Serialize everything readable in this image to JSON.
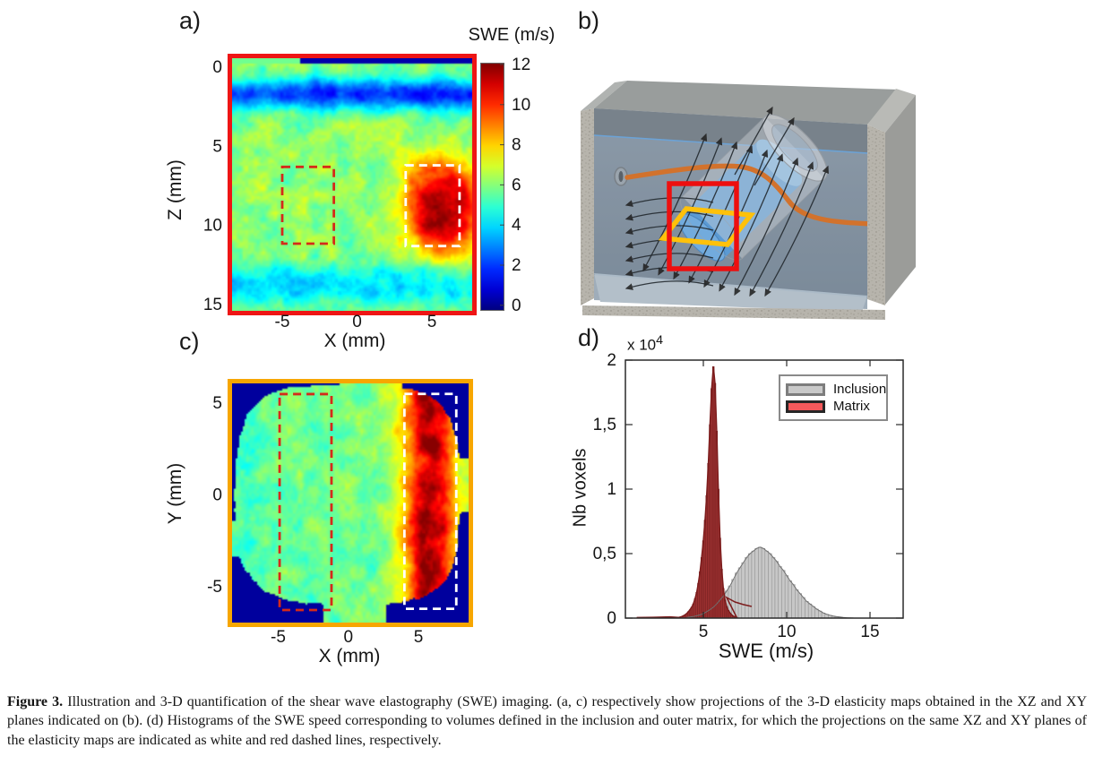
{
  "panels": {
    "a": {
      "label": "a)",
      "x_label": "X (mm)",
      "y_label": "Z (mm)",
      "colorbar_title": "SWE (m/s)",
      "frame_color": "#ee1515"
    },
    "b": {
      "label": "b)"
    },
    "c": {
      "label": "c)",
      "x_label": "X (mm)",
      "y_label": "Y (mm)",
      "frame_color": "#f7a600"
    },
    "d": {
      "label": "d)",
      "x_label": "SWE (m/s)",
      "y_label": "Nb voxels",
      "exponent_base": "x 10",
      "exponent_sup": "4",
      "legend": [
        {
          "label": "Inclusion",
          "swatch": "#c9c9c9",
          "swatch_border": "#7d7d7d"
        },
        {
          "label": "Matrix",
          "swatch": "#f4595b",
          "swatch_border": "#262626"
        }
      ]
    }
  },
  "colors": {
    "xz_plane_frame": "#ee1515",
    "xy_plane_frame": "#f7a600",
    "roi_matrix": "#d42a1a",
    "roi_inclusion": "#ffffff",
    "hist_matrix_fill": "#9e3131",
    "hist_inclusion_fill": "#c7c7c7",
    "fiber_orange": "#d2722c",
    "inclusion_cylinder_blue": "#5b9ad3"
  },
  "caption": {
    "label": "Figure 3.",
    "text": " Illustration and 3-D quantification of the shear wave elastography (SWE) imaging. (a, c) respectively show projections of the 3-D elasticity maps obtained in the XZ and XY planes indicated on (b). (d) Histograms of the SWE speed corresponding to volumes defined in the inclusion and outer matrix, for which the projections on the same XZ and XY planes of the elasticity maps are indicated as white and red dashed lines, respectively."
  },
  "chart_data": [
    {
      "id": "a",
      "type": "heatmap",
      "plane": "XZ",
      "xlabel": "X (mm)",
      "ylabel": "Z (mm)",
      "xlim": [
        -8.35,
        7.7
      ],
      "ylim": [
        -0.57,
        15.4
      ],
      "x_ticks": [
        -5,
        0,
        5
      ],
      "y_ticks": [
        0,
        5,
        10,
        15
      ],
      "grid": false,
      "colorbar": {
        "title": "SWE (m/s)",
        "range": [
          0,
          12
        ],
        "ticks": [
          12,
          10,
          8,
          6,
          4,
          2,
          0
        ]
      },
      "colormap": "jet",
      "rois": [
        {
          "name": "matrix",
          "line": "dashed",
          "color": "#d42a1a",
          "x": [
            -5.0,
            -1.55
          ],
          "y": [
            6.3,
            11.15
          ]
        },
        {
          "name": "inclusion",
          "line": "dashed",
          "color": "#ffffff",
          "x": [
            3.25,
            6.85
          ],
          "y": [
            6.2,
            11.3
          ]
        }
      ],
      "field": {
        "background_speed": 6.1,
        "low_speed_bands": [
          {
            "z": 1.7,
            "depth": 4.1,
            "sigma": 1.0
          },
          {
            "z": 13.8,
            "depth": 2.0,
            "sigma": 1.2
          }
        ],
        "inclusion": {
          "x": 5.7,
          "z": 8.8,
          "sx": 2.7,
          "sz": 3.0,
          "amp": 5.6
        },
        "noise_amp": 2.6
      }
    },
    {
      "id": "c",
      "type": "heatmap",
      "plane": "XY",
      "xlabel": "X (mm)",
      "ylabel": "Y (mm)",
      "xlim": [
        -8.29,
        8.58
      ],
      "ylim": [
        -6.95,
        6.07
      ],
      "x_ticks": [
        -5,
        0,
        5
      ],
      "y_ticks": [
        5,
        0,
        -5
      ],
      "grid": false,
      "colormap": "jet",
      "rois": [
        {
          "name": "matrix",
          "line": "dashed",
          "color": "#d42a1a",
          "x": [
            -4.9,
            -1.2
          ],
          "y": [
            -6.27,
            5.49
          ]
        },
        {
          "name": "inclusion",
          "line": "dashed",
          "color": "#ffffff",
          "x": [
            4.0,
            7.7
          ],
          "y": [
            -6.2,
            5.5
          ]
        }
      ],
      "field": {
        "background_speed": 5.8,
        "inclusion_band": {
          "x": 5.8,
          "sx": 2.0,
          "amp": 5.5
        },
        "noise_amp": 2.4,
        "footprint": {
          "rx": 8.0,
          "ry": 6.0,
          "power": 3.5
        }
      }
    },
    {
      "id": "d",
      "type": "bar",
      "title": "",
      "xlabel": "SWE (m/s)",
      "ylabel": "Nb voxels",
      "exponent": "x 10^4",
      "xlim": [
        0.3,
        17.0
      ],
      "ylim": [
        0,
        2
      ],
      "x_ticks": [
        5,
        10,
        15
      ],
      "y_ticks": [
        2,
        1.5,
        1,
        0.5,
        0
      ],
      "y_tick_labels": [
        "2",
        "1,5",
        "1",
        "0,5",
        "0"
      ],
      "grid": false,
      "legend_position": "top-right",
      "series": [
        {
          "name": "Inclusion",
          "fill": "#c7c7c7",
          "edge": "#8f8f8f",
          "x0": 4.0,
          "dx": 0.2,
          "y": [
            0.005,
            0.008,
            0.012,
            0.018,
            0.025,
            0.035,
            0.05,
            0.065,
            0.085,
            0.11,
            0.14,
            0.17,
            0.21,
            0.25,
            0.3,
            0.35,
            0.39,
            0.43,
            0.47,
            0.5,
            0.52,
            0.54,
            0.55,
            0.54,
            0.52,
            0.5,
            0.47,
            0.44,
            0.4,
            0.37,
            0.33,
            0.29,
            0.26,
            0.22,
            0.19,
            0.16,
            0.13,
            0.11,
            0.09,
            0.07,
            0.055,
            0.04,
            0.03,
            0.022,
            0.016,
            0.011,
            0.008,
            0.005,
            0.003,
            0.002,
            0.001
          ]
        },
        {
          "name": "Matrix",
          "fill": "#9e3131",
          "edge": "#6f1d1d",
          "x0": 3.5,
          "dx": 0.1,
          "y": [
            0.005,
            0.008,
            0.012,
            0.018,
            0.025,
            0.035,
            0.05,
            0.065,
            0.085,
            0.11,
            0.15,
            0.2,
            0.27,
            0.36,
            0.47,
            0.6,
            0.76,
            0.95,
            1.2,
            1.5,
            1.78,
            1.95,
            1.82,
            1.45,
            1.0,
            0.62,
            0.38,
            0.23,
            0.14,
            0.09,
            0.06,
            0.04,
            0.025,
            0.015,
            0.01,
            0.006
          ],
          "fit_tail": [
            [
              6.4,
              0.16
            ],
            [
              6.9,
              0.125
            ],
            [
              7.4,
              0.105
            ],
            [
              7.9,
              0.09
            ]
          ],
          "fit_lead": [
            [
              1.0,
              0.004
            ],
            [
              2.0,
              0.006
            ],
            [
              3.0,
              0.01
            ]
          ]
        }
      ]
    }
  ]
}
